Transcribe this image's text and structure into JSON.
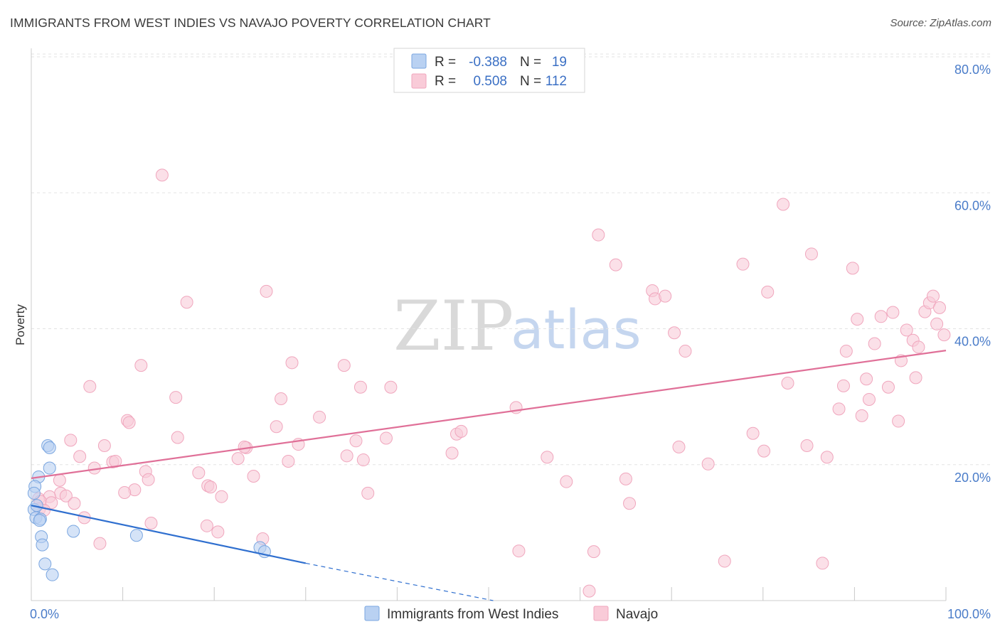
{
  "header": {
    "title": "IMMIGRANTS FROM WEST INDIES VS NAVAJO POVERTY CORRELATION CHART",
    "source": "Source: ZipAtlas.com"
  },
  "watermark": {
    "zip": "ZIP",
    "atlas": "atlas"
  },
  "chart_data": {
    "type": "scatter",
    "ylabel": "Poverty",
    "xlim": [
      0,
      100
    ],
    "ylim": [
      0,
      80
    ],
    "x_tick_labels": [
      "0.0%",
      "100.0%"
    ],
    "y_ticks": [
      20,
      40,
      60,
      80
    ],
    "y_tick_labels": [
      "20.0%",
      "40.0%",
      "60.0%",
      "80.0%"
    ],
    "grid": "horizontal dashed",
    "legend_position": "top-center",
    "stats": [
      {
        "r_label": "R =",
        "r": "-0.388",
        "n_label": "N =",
        "n": "19"
      },
      {
        "r_label": "R =",
        "r": "0.508",
        "n_label": "N =",
        "n": "112"
      }
    ],
    "series": [
      {
        "name": "Immigrants from West Indies",
        "color": "#7aa6e0",
        "fill": "#b9d1f2",
        "trend_color": "#2f6fcf",
        "trend": {
          "x0": 0,
          "y0": 14.0,
          "x1": 30,
          "y1": 5.5,
          "dash_to_x": 50.5,
          "dash_to_y": 0
        },
        "points": [
          [
            1.8,
            22.8
          ],
          [
            2.0,
            22.5
          ],
          [
            2.0,
            19.5
          ],
          [
            0.8,
            18.2
          ],
          [
            0.4,
            16.8
          ],
          [
            0.3,
            15.8
          ],
          [
            0.3,
            13.4
          ],
          [
            0.5,
            12.2
          ],
          [
            1.0,
            12.0
          ],
          [
            0.9,
            11.8
          ],
          [
            4.6,
            10.2
          ],
          [
            1.1,
            9.4
          ],
          [
            11.5,
            9.6
          ],
          [
            1.2,
            8.2
          ],
          [
            25.0,
            7.8
          ],
          [
            25.5,
            7.2
          ],
          [
            1.5,
            5.4
          ],
          [
            2.3,
            3.8
          ],
          [
            0.6,
            14.0
          ]
        ]
      },
      {
        "name": "Navajo",
        "color": "#f0a6bd",
        "fill": "#f9cbd8",
        "trend_color": "#e07098",
        "trend": {
          "x0": 0,
          "y0": 18.0,
          "x1": 100,
          "y1": 36.8
        },
        "points": [
          [
            14.3,
            62.6
          ],
          [
            17.0,
            43.9
          ],
          [
            25.7,
            45.5
          ],
          [
            12.0,
            34.6
          ],
          [
            6.4,
            31.5
          ],
          [
            15.8,
            29.9
          ],
          [
            10.5,
            26.5
          ],
          [
            10.7,
            26.2
          ],
          [
            4.3,
            23.6
          ],
          [
            16.0,
            24.0
          ],
          [
            8.0,
            22.8
          ],
          [
            5.3,
            21.2
          ],
          [
            8.9,
            20.4
          ],
          [
            9.2,
            20.5
          ],
          [
            12.5,
            19.0
          ],
          [
            12.8,
            17.8
          ],
          [
            6.9,
            19.5
          ],
          [
            3.1,
            17.7
          ],
          [
            3.2,
            15.8
          ],
          [
            3.8,
            15.4
          ],
          [
            2.0,
            15.3
          ],
          [
            0.8,
            15.0
          ],
          [
            1.0,
            14.6
          ],
          [
            2.2,
            14.4
          ],
          [
            0.9,
            13.5
          ],
          [
            1.4,
            13.3
          ],
          [
            11.3,
            16.3
          ],
          [
            10.2,
            15.9
          ],
          [
            4.7,
            14.3
          ],
          [
            5.8,
            12.2
          ],
          [
            13.1,
            11.4
          ],
          [
            19.2,
            11.0
          ],
          [
            20.4,
            10.1
          ],
          [
            7.5,
            8.4
          ],
          [
            18.3,
            18.8
          ],
          [
            19.3,
            16.9
          ],
          [
            19.6,
            16.7
          ],
          [
            20.8,
            15.3
          ],
          [
            22.6,
            20.9
          ],
          [
            23.5,
            22.5
          ],
          [
            23.3,
            22.6
          ],
          [
            24.3,
            18.3
          ],
          [
            25.3,
            9.1
          ],
          [
            26.8,
            25.6
          ],
          [
            27.3,
            29.7
          ],
          [
            28.1,
            20.5
          ],
          [
            28.5,
            35.0
          ],
          [
            29.2,
            23.0
          ],
          [
            31.5,
            27.0
          ],
          [
            34.2,
            34.6
          ],
          [
            34.5,
            21.3
          ],
          [
            35.5,
            23.5
          ],
          [
            36.3,
            20.7
          ],
          [
            36.8,
            15.8
          ],
          [
            36.0,
            31.4
          ],
          [
            38.8,
            23.9
          ],
          [
            39.3,
            31.4
          ],
          [
            46.0,
            21.7
          ],
          [
            46.5,
            24.5
          ],
          [
            47.0,
            24.9
          ],
          [
            53.0,
            28.4
          ],
          [
            53.3,
            7.3
          ],
          [
            56.4,
            21.1
          ],
          [
            58.5,
            17.5
          ],
          [
            61.0,
            1.4
          ],
          [
            61.5,
            7.2
          ],
          [
            62.0,
            53.8
          ],
          [
            63.9,
            49.4
          ],
          [
            65.0,
            17.9
          ],
          [
            65.4,
            14.3
          ],
          [
            67.9,
            45.6
          ],
          [
            68.2,
            44.4
          ],
          [
            69.3,
            44.8
          ],
          [
            70.3,
            39.4
          ],
          [
            70.8,
            22.6
          ],
          [
            71.5,
            36.7
          ],
          [
            74.0,
            20.1
          ],
          [
            75.8,
            5.8
          ],
          [
            77.8,
            49.5
          ],
          [
            78.9,
            24.6
          ],
          [
            80.1,
            22.0
          ],
          [
            80.5,
            45.4
          ],
          [
            82.2,
            58.3
          ],
          [
            82.7,
            32.0
          ],
          [
            84.8,
            22.8
          ],
          [
            85.3,
            51.0
          ],
          [
            86.5,
            5.5
          ],
          [
            87.0,
            21.1
          ],
          [
            88.3,
            28.2
          ],
          [
            88.8,
            31.6
          ],
          [
            89.1,
            36.7
          ],
          [
            89.8,
            48.9
          ],
          [
            90.3,
            41.4
          ],
          [
            90.8,
            27.2
          ],
          [
            91.3,
            32.6
          ],
          [
            91.6,
            29.6
          ],
          [
            92.2,
            37.8
          ],
          [
            92.9,
            41.8
          ],
          [
            93.7,
            31.4
          ],
          [
            94.2,
            42.4
          ],
          [
            94.8,
            26.4
          ],
          [
            95.1,
            35.3
          ],
          [
            95.7,
            39.8
          ],
          [
            96.4,
            38.3
          ],
          [
            96.7,
            32.8
          ],
          [
            97.0,
            37.3
          ],
          [
            97.7,
            42.5
          ],
          [
            98.2,
            43.8
          ],
          [
            98.6,
            44.8
          ],
          [
            99.0,
            40.7
          ],
          [
            99.3,
            43.1
          ],
          [
            99.8,
            39.1
          ]
        ]
      }
    ]
  }
}
